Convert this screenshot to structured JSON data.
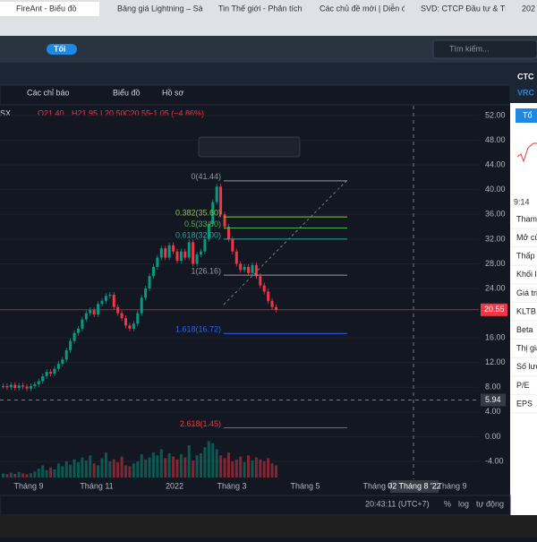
{
  "tabs": [
    "FireAnt - Biểu đồ",
    "Bảng giá Lightning – Sàn...",
    "Tin Thế giới - Phân tích an...",
    "Các chủ đề mới | Diễn đàn...",
    "SVD: CTCP Đầu tư & Thươ...",
    "202"
  ],
  "toolbar": {
    "theme": "Tối",
    "search": "Tìm kiếm...",
    "indicators": "Các chỉ báo",
    "chart": "Biểu đồ",
    "profile": "Hồ sơ"
  },
  "chart": {
    "symbol": "SX",
    "open": "O21.40",
    "high": "H21.95",
    "low": "L20.50",
    "close": "C20.55",
    "change": "−1.05 (−4.86%)",
    "ylim": [
      -6.9,
      53.6
    ],
    "yticks": [
      {
        "value": 52,
        "label": "52.00"
      },
      {
        "value": 48,
        "label": "48.00"
      },
      {
        "value": 44,
        "label": "44.00"
      },
      {
        "value": 40,
        "label": "40.00"
      },
      {
        "value": 36,
        "label": "36.00"
      },
      {
        "value": 32,
        "label": "32.00"
      },
      {
        "value": 28,
        "label": "28.00"
      },
      {
        "value": 24,
        "label": "24.00"
      },
      {
        "value": 16,
        "label": "16.00"
      },
      {
        "value": 12,
        "label": "12.00"
      },
      {
        "value": 8,
        "label": "8.00"
      },
      {
        "value": 4,
        "label": "4.00"
      },
      {
        "value": 0,
        "label": "0.00"
      },
      {
        "value": -4,
        "label": "-4.00"
      }
    ],
    "last_price": {
      "value": 20.55,
      "label": "20.55"
    },
    "crosshair": {
      "value": 5.94,
      "label": "5.94",
      "date": "02 Tháng 8 '22"
    },
    "fib": [
      {
        "label": "0(41.44)",
        "value": 41.44,
        "color": "#9598a1"
      },
      {
        "label": "0.382(35.60)",
        "value": 35.6,
        "color": "#8bc34a"
      },
      {
        "label": "0.5(33.80)",
        "value": 33.8,
        "color": "#4caf50"
      },
      {
        "label": "0.618(32.00)",
        "value": 32.0,
        "color": "#26a69a"
      },
      {
        "label": "1(26.16)",
        "value": 26.16,
        "color": "#9598a1"
      },
      {
        "label": "1.618(16.72)",
        "value": 16.72,
        "color": "#2962ff"
      },
      {
        "label": "2.618(1.45)",
        "value": 1.45,
        "color": "#f23645"
      }
    ],
    "closes": [
      8.2,
      8.0,
      8.4,
      7.9,
      8.3,
      8.1,
      7.8,
      8.2,
      8.5,
      9.0,
      9.8,
      10.5,
      10.2,
      11.0,
      11.8,
      12.5,
      14.0,
      15.5,
      16.8,
      17.5,
      19.0,
      20.0,
      20.5,
      19.8,
      21.5,
      22.0,
      22.8,
      23.0,
      21.0,
      20.0,
      19.2,
      18.0,
      17.5,
      18.3,
      20.0,
      22.5,
      24.0,
      26.0,
      27.5,
      29.0,
      30.5,
      29.0,
      31.0,
      30.0,
      28.5,
      30.0,
      29.0,
      31.5,
      28.0,
      29.5,
      30.0,
      32.0,
      34.5,
      38.0,
      40.5,
      36.0,
      34.0,
      32.0,
      30.0,
      28.0,
      27.0,
      27.5,
      26.5,
      27.8,
      26.0,
      24.5,
      23.5,
      22.0,
      21.0,
      20.55
    ],
    "volumes": [
      10,
      8,
      12,
      9,
      14,
      10,
      8,
      11,
      15,
      22,
      30,
      18,
      25,
      20,
      35,
      28,
      40,
      32,
      45,
      38,
      50,
      42,
      55,
      35,
      30,
      48,
      62,
      40,
      45,
      38,
      52,
      30,
      28,
      35,
      40,
      58,
      45,
      50,
      62,
      55,
      70,
      48,
      60,
      52,
      45,
      58,
      50,
      80,
      42,
      55,
      60,
      75,
      90,
      85,
      70,
      55,
      48,
      62,
      40,
      45,
      52,
      38,
      55,
      42,
      50,
      45,
      40,
      48,
      35,
      30
    ],
    "x_labels": [
      "Tháng 9",
      "Tháng 11",
      "2022",
      "Tháng 3",
      "Tháng 5",
      "Tháng 7",
      "Tháng 9"
    ]
  },
  "footer": {
    "time": "20:43:11 (UTC+7)",
    "percent": "%",
    "log": "log",
    "auto": "tự động"
  },
  "panel": {
    "title": "CTC",
    "code": "VRC",
    "button": "Tổ",
    "time": "9:14",
    "rows": [
      "Tham",
      "Mở cử",
      "Thấp",
      "Khối l",
      "Giá tri",
      "KLTB",
      "Beta",
      "Thị giá",
      "Số lượ",
      "P/E",
      "EPS"
    ]
  }
}
